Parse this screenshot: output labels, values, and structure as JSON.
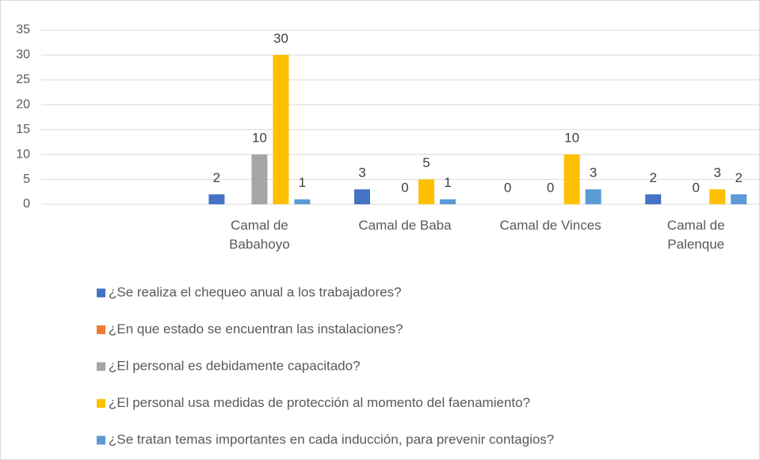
{
  "chart_data": {
    "type": "bar",
    "categories": [
      null,
      "Camal de Babahoyo",
      "Camal de Baba",
      "Camal de Vinces",
      "Camal de Palenque"
    ],
    "series": [
      {
        "name": "¿Se realiza el chequeo anual a los trabajadores?",
        "color": "#4472c4",
        "values": [
          null,
          2,
          3,
          0,
          2
        ]
      },
      {
        "name": "¿En que estado se encuentran las instalaciones?",
        "color": "#ed7d31",
        "values": [
          null,
          null,
          null,
          null,
          null
        ]
      },
      {
        "name": "¿El personal es debidamente capacitado?",
        "color": "#a5a5a5",
        "values": [
          null,
          10,
          0,
          0,
          0
        ]
      },
      {
        "name": "¿El personal usa medidas de protección al momento del faenamiento?",
        "color": "#ffc000",
        "values": [
          null,
          30,
          5,
          10,
          3
        ]
      },
      {
        "name": "¿Se tratan temas importantes en cada inducción, para prevenir contagios?",
        "color": "#5b9bd5",
        "values": [
          null,
          1,
          1,
          3,
          2
        ]
      }
    ],
    "ylim": [
      0,
      35
    ],
    "yticks": [
      0,
      5,
      10,
      15,
      20,
      25,
      30,
      35
    ],
    "grid": true
  }
}
